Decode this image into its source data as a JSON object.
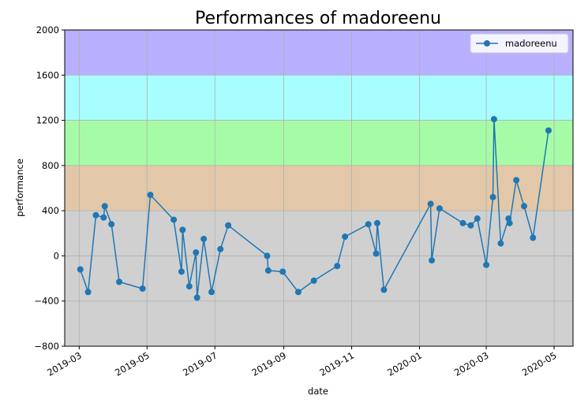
{
  "chart_data": {
    "type": "line",
    "title": "Performances of madoreenu",
    "xlabel": "date",
    "ylabel": "performance",
    "ylim": [
      -800,
      2000
    ],
    "xlim": [
      "2019-02-16",
      "2020-05-18"
    ],
    "yticks": [
      -800,
      -400,
      0,
      400,
      800,
      1200,
      1600,
      2000
    ],
    "xticks": [
      "2019-03",
      "2019-05",
      "2019-07",
      "2019-09",
      "2019-11",
      "2020-01",
      "2020-03",
      "2020-05"
    ],
    "grid": true,
    "legend_position": "top-right",
    "bands": [
      {
        "from": -800,
        "to": 400,
        "color": "#d0d0d0"
      },
      {
        "from": 400,
        "to": 800,
        "color": "#e2c8a8"
      },
      {
        "from": 800,
        "to": 1200,
        "color": "#a6fca6"
      },
      {
        "from": 1200,
        "to": 1600,
        "color": "#a8feff"
      },
      {
        "from": 1600,
        "to": 2000,
        "color": "#b8b0ff"
      }
    ],
    "series": [
      {
        "name": "madoreenu",
        "color": "#1f77b4",
        "points": [
          {
            "x": "2019-03-02",
            "y": -120
          },
          {
            "x": "2019-03-09",
            "y": -320
          },
          {
            "x": "2019-03-16",
            "y": 360
          },
          {
            "x": "2019-03-23",
            "y": 340
          },
          {
            "x": "2019-03-24",
            "y": 440
          },
          {
            "x": "2019-03-30",
            "y": 280
          },
          {
            "x": "2019-04-06",
            "y": -230
          },
          {
            "x": "2019-04-27",
            "y": -290
          },
          {
            "x": "2019-05-04",
            "y": 540
          },
          {
            "x": "2019-05-25",
            "y": 320
          },
          {
            "x": "2019-06-01",
            "y": -140
          },
          {
            "x": "2019-06-02",
            "y": 230
          },
          {
            "x": "2019-06-08",
            "y": -270
          },
          {
            "x": "2019-06-14",
            "y": 30
          },
          {
            "x": "2019-06-15",
            "y": -370
          },
          {
            "x": "2019-06-21",
            "y": 150
          },
          {
            "x": "2019-06-28",
            "y": -320
          },
          {
            "x": "2019-07-06",
            "y": 60
          },
          {
            "x": "2019-07-13",
            "y": 270
          },
          {
            "x": "2019-08-17",
            "y": 0
          },
          {
            "x": "2019-08-18",
            "y": -130
          },
          {
            "x": "2019-08-31",
            "y": -140
          },
          {
            "x": "2019-09-14",
            "y": -320
          },
          {
            "x": "2019-09-28",
            "y": -220
          },
          {
            "x": "2019-10-19",
            "y": -90
          },
          {
            "x": "2019-10-26",
            "y": 170
          },
          {
            "x": "2019-11-16",
            "y": 280
          },
          {
            "x": "2019-11-23",
            "y": 20
          },
          {
            "x": "2019-11-24",
            "y": 290
          },
          {
            "x": "2019-11-30",
            "y": -300
          },
          {
            "x": "2020-01-11",
            "y": 460
          },
          {
            "x": "2020-01-12",
            "y": -40
          },
          {
            "x": "2020-01-19",
            "y": 420
          },
          {
            "x": "2020-02-09",
            "y": 290
          },
          {
            "x": "2020-02-16",
            "y": 270
          },
          {
            "x": "2020-02-22",
            "y": 330
          },
          {
            "x": "2020-03-01",
            "y": -80
          },
          {
            "x": "2020-03-07",
            "y": 520
          },
          {
            "x": "2020-03-08",
            "y": 1210
          },
          {
            "x": "2020-03-14",
            "y": 110
          },
          {
            "x": "2020-03-21",
            "y": 330
          },
          {
            "x": "2020-03-22",
            "y": 290
          },
          {
            "x": "2020-03-28",
            "y": 670
          },
          {
            "x": "2020-04-04",
            "y": 440
          },
          {
            "x": "2020-04-12",
            "y": 160
          },
          {
            "x": "2020-04-26",
            "y": 1110
          }
        ]
      }
    ]
  }
}
